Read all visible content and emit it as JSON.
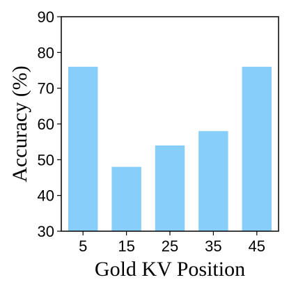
{
  "chart_data": {
    "type": "bar",
    "title": "",
    "xlabel": "Gold KV Position",
    "ylabel": "Accuracy (%)",
    "categories": [
      "5",
      "15",
      "25",
      "35",
      "45"
    ],
    "values": [
      76,
      48,
      54,
      58,
      76
    ],
    "ylim": [
      30,
      90
    ],
    "yticks": [
      "30",
      "40",
      "50",
      "60",
      "70",
      "80",
      "90"
    ],
    "grid": false,
    "legend": "none",
    "bar_color": "#87CEFA"
  }
}
